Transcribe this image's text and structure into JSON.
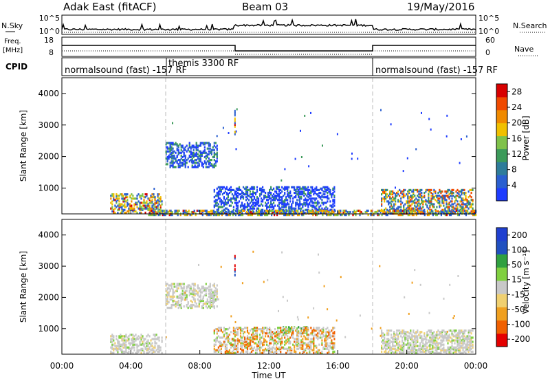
{
  "header": {
    "radar": "Adak East (fitACF)",
    "beam": "Beam 03",
    "date": "19/May/2016"
  },
  "panels": {
    "nsky": {
      "label": "N.Sky",
      "right_label": "N.Search",
      "ticks_left": [
        "10^5",
        "10^0"
      ],
      "ticks_right": [
        "10^5",
        "10^0"
      ]
    },
    "freq": {
      "label_line1": "Freq.",
      "label_line2": "[MHz]",
      "right_label": "Nave",
      "ticks_left": [
        "18",
        "8"
      ],
      "ticks_right": [
        "60",
        "0"
      ]
    },
    "cpid": {
      "label": "CPID",
      "modes": [
        {
          "label": "normalsound (fast) -157 RF"
        },
        {
          "label": "themis 3300 RF"
        },
        {
          "label": "normalsound (fast) -157 RF"
        }
      ]
    }
  },
  "colors": {
    "power": [
      "#1e3cff",
      "#2a5fd0",
      "#2e7c9a",
      "#3c9a5a",
      "#7fc24a",
      "#f0c000",
      "#f08a00",
      "#f04a00",
      "#d80000"
    ],
    "velocity": [
      "#e40000",
      "#f06000",
      "#f0a020",
      "#f0d070",
      "#c8c8c8",
      "#80d040",
      "#30a040",
      "#2050c0",
      "#2040d0"
    ]
  },
  "chart_data": [
    {
      "type": "heatmap",
      "title": "",
      "ylabel": "Slant Range [km]",
      "xlabel": "",
      "ylim": [
        180,
        4500
      ],
      "x_ticks": [
        "00:00",
        "04:00",
        "08:00",
        "12:00",
        "16:00",
        "20:00",
        "00:00"
      ],
      "y_ticks": [
        "1000",
        "2000",
        "3000",
        "4000"
      ],
      "colorbar": {
        "label": "Power [dB]",
        "ticks": [
          "4",
          "8",
          "12",
          "16",
          "20",
          "24",
          "28"
        ],
        "range": [
          0,
          30
        ]
      },
      "patches": [
        {
          "t": [
            2.8,
            5.8
          ],
          "range": [
            250,
            850
          ],
          "value": "mixed-high"
        },
        {
          "t": [
            6.0,
            9.0
          ],
          "range": [
            1700,
            2500
          ],
          "value": "low-mid"
        },
        {
          "t": [
            8.8,
            15.8
          ],
          "range": [
            250,
            1100
          ],
          "value": "low"
        },
        {
          "t": [
            18.5,
            23.8
          ],
          "range": [
            250,
            1000
          ],
          "value": "mixed"
        },
        {
          "t": [
            5.0,
            24.0
          ],
          "range": [
            180,
            320
          ],
          "value": "mixed-high"
        }
      ],
      "mode_boundaries_hours": [
        6.0,
        18.0
      ]
    },
    {
      "type": "heatmap",
      "title": "",
      "ylabel": "Slant Range [km]",
      "xlabel": "Time UT",
      "ylim": [
        180,
        4500
      ],
      "x_ticks": [
        "00:00",
        "04:00",
        "08:00",
        "12:00",
        "16:00",
        "20:00",
        "00:00"
      ],
      "y_ticks": [
        "1000",
        "2000",
        "3000",
        "4000"
      ],
      "colorbar": {
        "label": "Velocity [m s⁻¹]",
        "ticks": [
          "200",
          "100",
          "50",
          "15",
          "-15",
          "-50",
          "-100",
          "-200"
        ],
        "range": [
          -250,
          250
        ]
      },
      "patches": [
        {
          "t": [
            2.8,
            5.8
          ],
          "range": [
            250,
            850
          ],
          "value": "near-zero"
        },
        {
          "t": [
            6.0,
            9.0
          ],
          "range": [
            1700,
            2500
          ],
          "value": "near-zero"
        },
        {
          "t": [
            12.8,
            14.2
          ],
          "range": [
            900,
            1100
          ],
          "value": "positive"
        },
        {
          "t": [
            8.8,
            15.8
          ],
          "range": [
            250,
            1100
          ],
          "value": "mixed"
        },
        {
          "t": [
            18.5,
            23.8
          ],
          "range": [
            250,
            1000
          ],
          "value": "near-zero"
        }
      ],
      "mode_boundaries_hours": [
        6.0,
        18.0
      ]
    }
  ]
}
